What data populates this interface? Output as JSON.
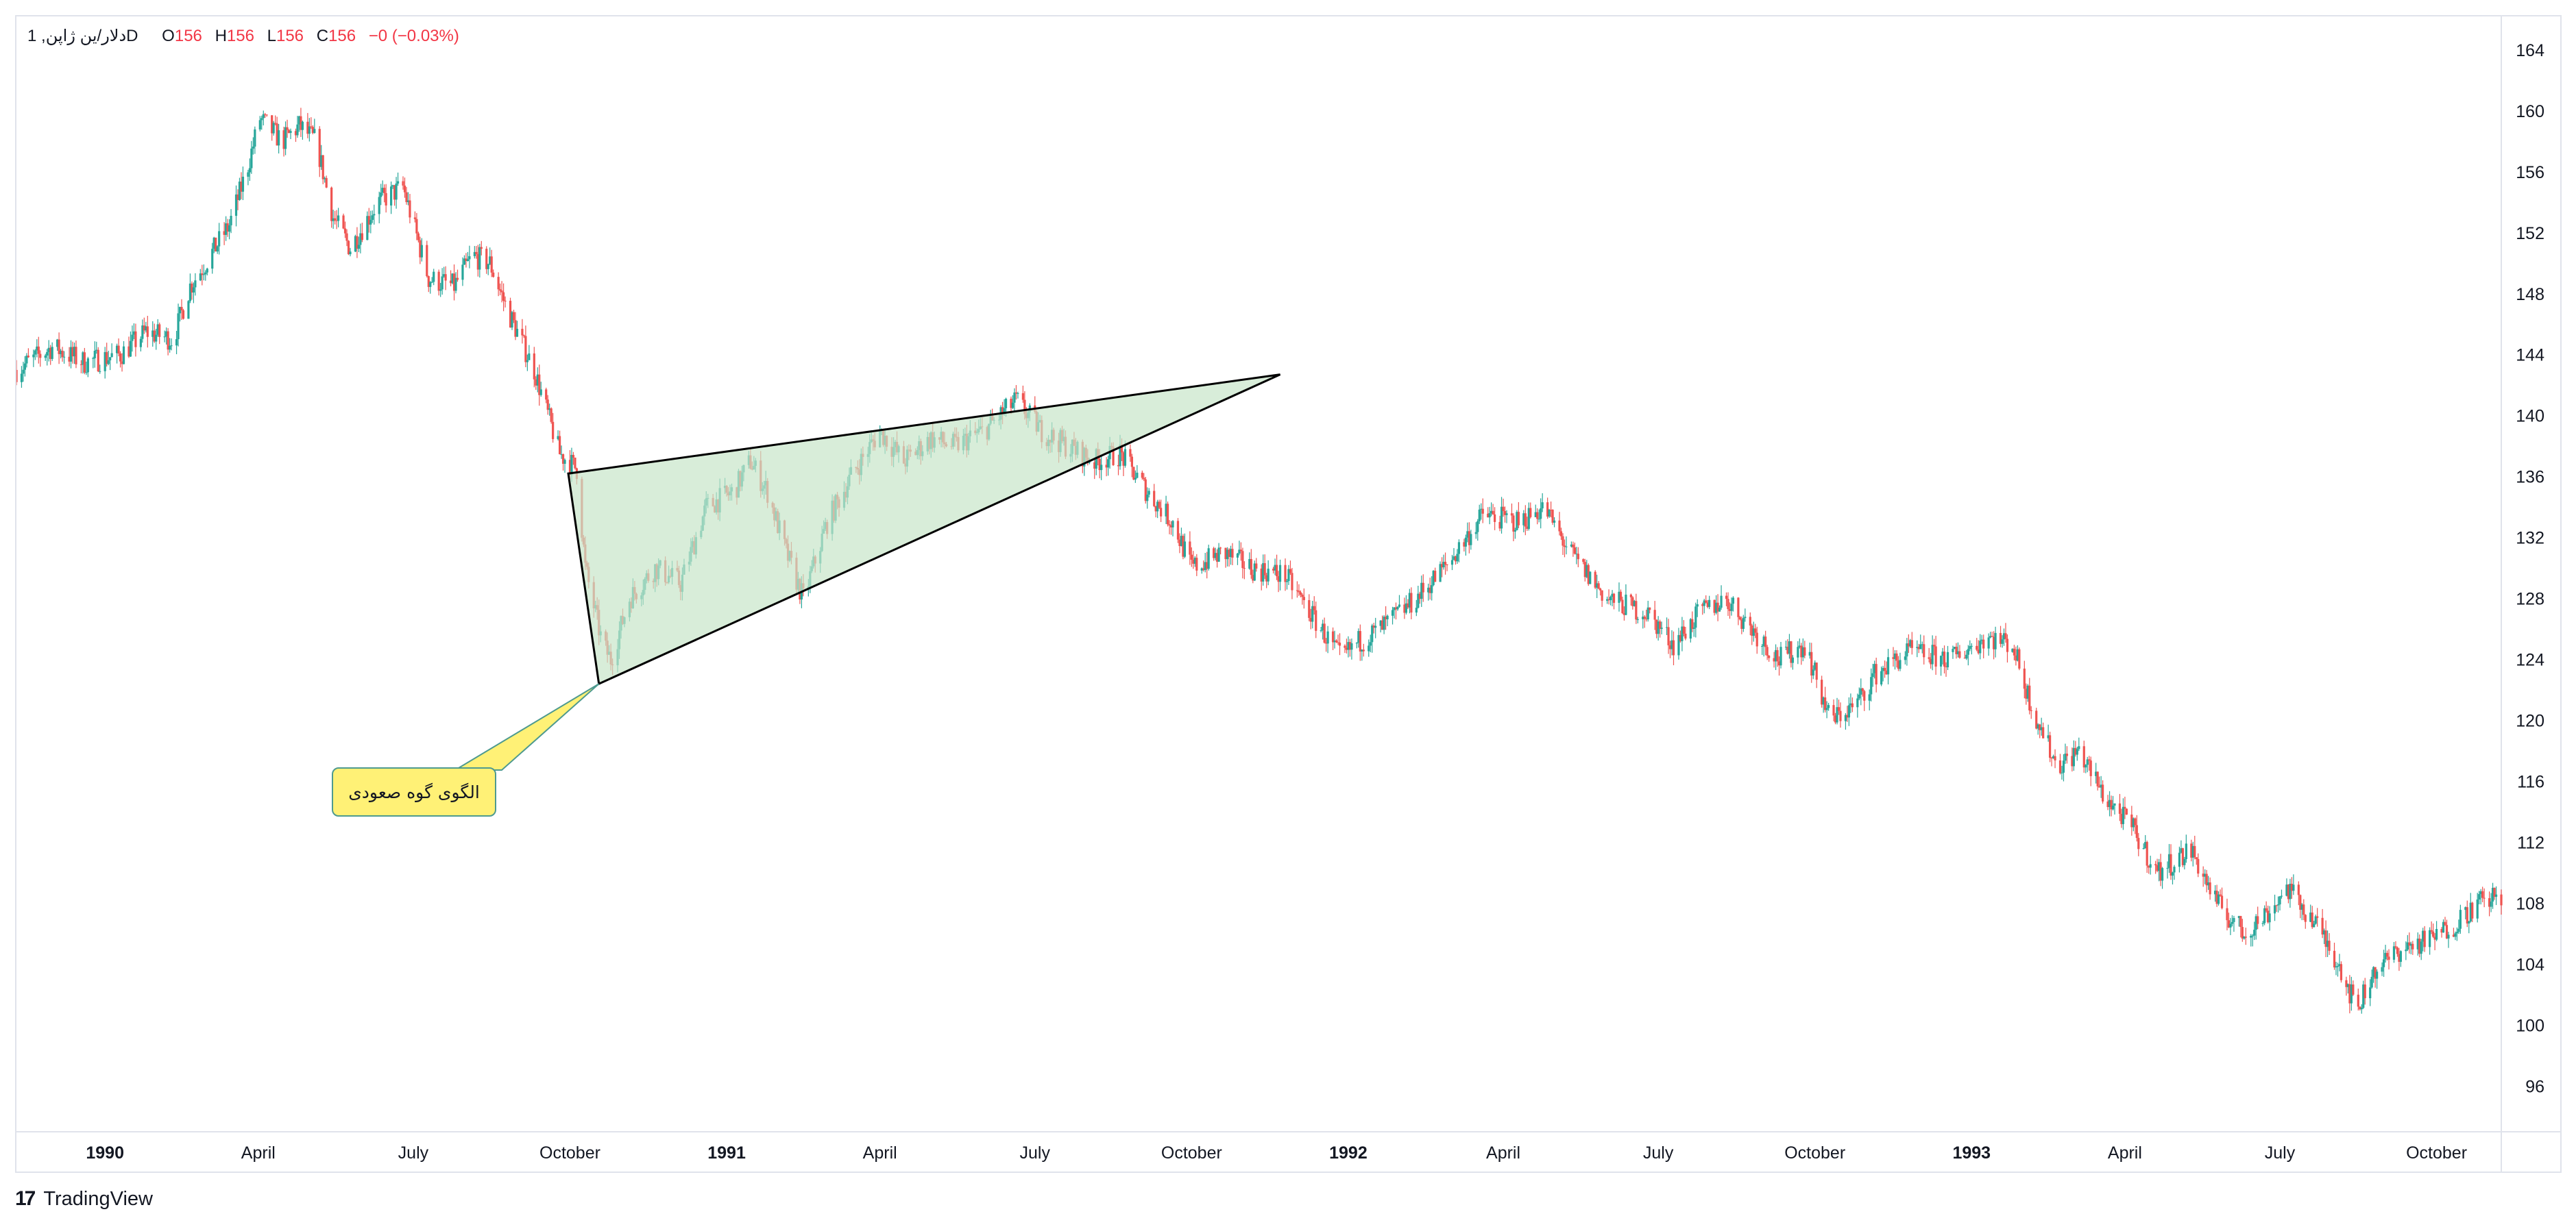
{
  "legend": {
    "symbol": "دلار/ین ژاپن, 1D",
    "o_label": "O",
    "o_value": "156",
    "h_label": "H",
    "h_value": "156",
    "l_label": "L",
    "l_value": "156",
    "c_label": "C",
    "c_value": "156",
    "change": "−0 (−0.03%)"
  },
  "annotation": {
    "label": "الگوی گوه صعودی",
    "fill_color": "#fff176",
    "wedge_color": "#c8e6c9"
  },
  "watermark": {
    "logo": "17",
    "brand": "TradingView"
  },
  "colors": {
    "up": "#26a69a",
    "down": "#ef5350",
    "legend_value": "#f23645"
  },
  "chart_data": {
    "type": "candlestick",
    "title": "",
    "x_axis": {
      "ticks": [
        {
          "label": "1990",
          "date": "1990-01-01",
          "bold": true
        },
        {
          "label": "April",
          "date": "1990-04-01",
          "bold": false
        },
        {
          "label": "July",
          "date": "1990-07-01",
          "bold": false
        },
        {
          "label": "October",
          "date": "1990-10-01",
          "bold": false
        },
        {
          "label": "1991",
          "date": "1991-01-01",
          "bold": true
        },
        {
          "label": "April",
          "date": "1991-04-01",
          "bold": false
        },
        {
          "label": "July",
          "date": "1991-07-01",
          "bold": false
        },
        {
          "label": "October",
          "date": "1991-10-01",
          "bold": false
        },
        {
          "label": "1992",
          "date": "1992-01-01",
          "bold": true
        },
        {
          "label": "April",
          "date": "1992-04-01",
          "bold": false
        },
        {
          "label": "July",
          "date": "1992-07-01",
          "bold": false
        },
        {
          "label": "October",
          "date": "1992-10-01",
          "bold": false
        },
        {
          "label": "1993",
          "date": "1993-01-01",
          "bold": true
        },
        {
          "label": "April",
          "date": "1993-04-01",
          "bold": false
        },
        {
          "label": "July",
          "date": "1993-07-01",
          "bold": false
        },
        {
          "label": "October",
          "date": "1993-10-01",
          "bold": false
        }
      ],
      "range": [
        "1989-11-10",
        "1993-11-08"
      ]
    },
    "y_axis": {
      "ticks": [
        96,
        100,
        104,
        108,
        112,
        116,
        120,
        124,
        128,
        132,
        136,
        140,
        144,
        148,
        152,
        156,
        160,
        164
      ],
      "range": [
        93,
        166.2
      ],
      "position": "right"
    },
    "grid": false,
    "price_path": [
      [
        "1989-11-10",
        143.0
      ],
      [
        "1989-12-01",
        144.5
      ],
      [
        "1989-12-20",
        143.5
      ],
      [
        "1990-01-10",
        144.0
      ],
      [
        "1990-01-25",
        145.5
      ],
      [
        "1990-02-10",
        145.0
      ],
      [
        "1990-02-20",
        148.5
      ],
      [
        "1990-03-01",
        150.0
      ],
      [
        "1990-03-15",
        152.5
      ],
      [
        "1990-03-25",
        156.0
      ],
      [
        "1990-04-02",
        159.5
      ],
      [
        "1990-04-15",
        158.0
      ],
      [
        "1990-04-25",
        159.0
      ],
      [
        "1990-05-05",
        158.0
      ],
      [
        "1990-05-15",
        153.0
      ],
      [
        "1990-05-25",
        151.0
      ],
      [
        "1990-06-10",
        154.0
      ],
      [
        "1990-06-25",
        155.0
      ],
      [
        "1990-07-10",
        149.0
      ],
      [
        "1990-07-25",
        148.5
      ],
      [
        "1990-08-05",
        150.5
      ],
      [
        "1990-08-15",
        150.0
      ],
      [
        "1990-08-25",
        147.0
      ],
      [
        "1990-09-10",
        143.0
      ],
      [
        "1990-09-25",
        137.5
      ],
      [
        "1990-10-05",
        136.5
      ],
      [
        "1990-10-10",
        130.0
      ],
      [
        "1990-10-20",
        125.0
      ],
      [
        "1990-10-25",
        124.0
      ],
      [
        "1990-11-05",
        128.0
      ],
      [
        "1990-11-20",
        130.0
      ],
      [
        "1990-12-05",
        129.0
      ],
      [
        "1990-12-20",
        134.0
      ],
      [
        "1991-01-05",
        135.0
      ],
      [
        "1991-01-15",
        137.0
      ],
      [
        "1991-01-25",
        135.0
      ],
      [
        "1991-02-05",
        131.0
      ],
      [
        "1991-02-15",
        128.0
      ],
      [
        "1991-03-01",
        133.0
      ],
      [
        "1991-03-15",
        136.0
      ],
      [
        "1991-04-01",
        139.0
      ],
      [
        "1991-04-15",
        137.0
      ],
      [
        "1991-05-01",
        138.5
      ],
      [
        "1991-05-15",
        138.0
      ],
      [
        "1991-06-01",
        139.0
      ],
      [
        "1991-06-20",
        141.0
      ],
      [
        "1991-07-05",
        139.0
      ],
      [
        "1991-07-20",
        138.0
      ],
      [
        "1991-08-05",
        137.0
      ],
      [
        "1991-08-20",
        137.5
      ],
      [
        "1991-09-05",
        135.0
      ],
      [
        "1991-09-20",
        133.0
      ],
      [
        "1991-10-01",
        130.0
      ],
      [
        "1991-10-20",
        131.0
      ],
      [
        "1991-11-05",
        130.0
      ],
      [
        "1991-11-25",
        129.5
      ],
      [
        "1991-12-10",
        127.0
      ],
      [
        "1991-12-28",
        124.0
      ],
      [
        "1992-01-05",
        125.0
      ],
      [
        "1992-01-20",
        126.0
      ],
      [
        "1992-02-10",
        128.0
      ],
      [
        "1992-03-01",
        130.5
      ],
      [
        "1992-03-20",
        133.5
      ],
      [
        "1992-04-10",
        133.0
      ],
      [
        "1992-04-25",
        134.0
      ],
      [
        "1992-05-10",
        131.0
      ],
      [
        "1992-06-01",
        128.0
      ],
      [
        "1992-06-25",
        127.0
      ],
      [
        "1992-07-10",
        125.0
      ],
      [
        "1992-07-25",
        127.0
      ],
      [
        "1992-08-10",
        128.0
      ],
      [
        "1992-08-25",
        126.0
      ],
      [
        "1992-09-10",
        124.0
      ],
      [
        "1992-09-25",
        125.0
      ],
      [
        "1992-10-10",
        120.0
      ],
      [
        "1992-10-25",
        121.0
      ],
      [
        "1992-11-05",
        123.0
      ],
      [
        "1992-11-25",
        124.5
      ],
      [
        "1992-12-20",
        124.0
      ],
      [
        "1993-01-10",
        125.5
      ],
      [
        "1993-01-25",
        125.0
      ],
      [
        "1993-02-05",
        121.0
      ],
      [
        "1993-02-20",
        117.0
      ],
      [
        "1993-03-05",
        118.0
      ],
      [
        "1993-03-20",
        115.0
      ],
      [
        "1993-04-05",
        113.0
      ],
      [
        "1993-04-20",
        110.0
      ],
      [
        "1993-05-10",
        111.5
      ],
      [
        "1993-05-25",
        108.0
      ],
      [
        "1993-06-10",
        106.0
      ],
      [
        "1993-06-25",
        107.5
      ],
      [
        "1993-07-05",
        109.0
      ],
      [
        "1993-07-20",
        107.0
      ],
      [
        "1993-08-05",
        104.0
      ],
      [
        "1993-08-15",
        101.0
      ],
      [
        "1993-08-25",
        103.5
      ],
      [
        "1993-09-10",
        105.0
      ],
      [
        "1993-09-25",
        105.5
      ],
      [
        "1993-10-10",
        106.5
      ],
      [
        "1993-10-25",
        108.0
      ],
      [
        "1993-11-08",
        108.5
      ]
    ],
    "wedge": {
      "vertices": [
        [
          "1990-09-30",
          136.2
        ],
        [
          "1990-10-18",
          122.4
        ],
        [
          "1991-11-22",
          142.7
        ]
      ]
    },
    "callout": {
      "anchor": [
        "1990-10-18",
        122.4
      ]
    }
  }
}
